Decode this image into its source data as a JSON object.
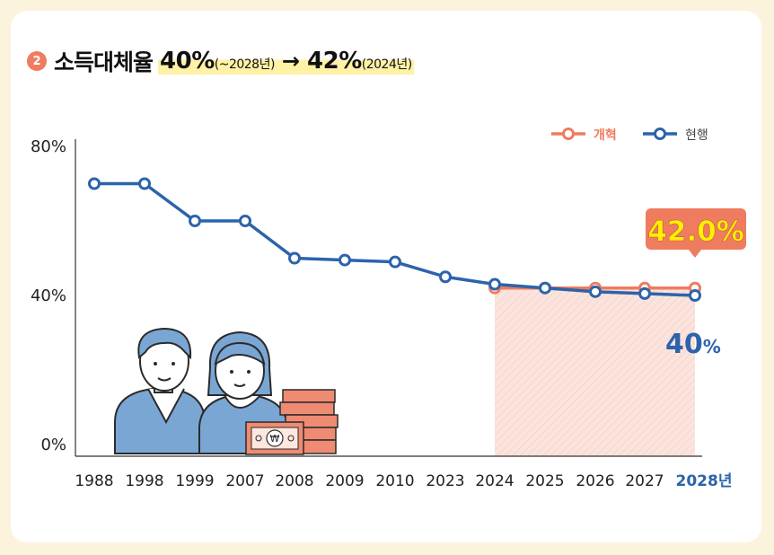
{
  "title": {
    "badge": "2",
    "main": "소득대체율",
    "value1": "40%",
    "note1": "(~2028년)",
    "arrow": "→",
    "value2": "42%",
    "note2": "(2024년)"
  },
  "colors": {
    "reform": "#ef7c5e",
    "current": "#2c63ab",
    "callout_text": "#fff200",
    "shade": "#fbe1da",
    "illustration": "#7aa6d4"
  },
  "chart_data": {
    "type": "line",
    "categories": [
      "1988",
      "1998",
      "1999",
      "2007",
      "2008",
      "2009",
      "2010",
      "2023",
      "2024",
      "2025",
      "2026",
      "2027",
      "2028년"
    ],
    "series": [
      {
        "name": "현행",
        "values": [
          70,
          70,
          60,
          60,
          50,
          49.5,
          49,
          45,
          43,
          42,
          41,
          40.5,
          40
        ]
      },
      {
        "name": "개혁",
        "values": [
          null,
          null,
          null,
          null,
          null,
          null,
          null,
          null,
          42,
          42,
          42,
          42,
          42
        ]
      }
    ],
    "yticks": [
      "80%",
      "40%",
      "0%"
    ],
    "ylim": [
      0,
      80
    ],
    "legend": {
      "items": [
        "개혁",
        "현행"
      ],
      "position": "top-right"
    },
    "annotations": {
      "reform_end": "42.0%",
      "current_end": "40",
      "current_end_unit": "%"
    },
    "grid": false
  }
}
